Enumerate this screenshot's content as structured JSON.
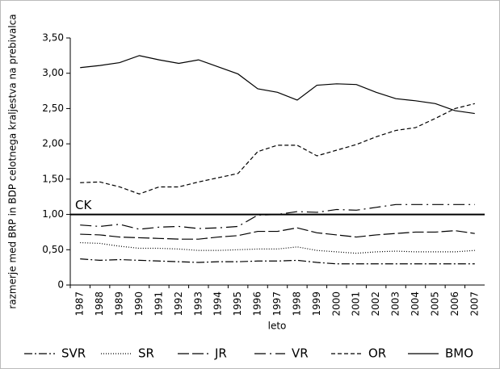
{
  "chart_data": {
    "type": "line",
    "y_label": "razmerje med BRP in BDP celotnega kraljestva na prebivalca",
    "x_label": "leto",
    "categories": [
      "1987",
      "1988",
      "1989",
      "1990",
      "1991",
      "1992",
      "1993",
      "1994",
      "1995",
      "1996",
      "1997",
      "1998",
      "1999",
      "2000",
      "2001",
      "2002",
      "2003",
      "2004",
      "2005",
      "2006",
      "2007"
    ],
    "ylim": [
      0,
      3.5
    ],
    "yticks": [
      0,
      {
        "value": 0.5,
        "label": "0,50"
      },
      {
        "value": 1,
        "label": "1,00"
      },
      {
        "value": 1.5,
        "label": "1,50"
      },
      {
        "value": 2,
        "label": "2,00"
      },
      {
        "value": 2.5,
        "label": "2,50"
      },
      {
        "value": 3,
        "label": "3,00"
      },
      {
        "value": 3.5,
        "label": "3,50"
      }
    ],
    "reference_line": {
      "label": "CK",
      "value": 1
    },
    "legend": "bottom",
    "series": [
      {
        "name": "SVR",
        "color": "#000000",
        "dash": "dashdot",
        "values": [
          0.37,
          0.35,
          0.36,
          0.35,
          0.34,
          0.33,
          0.32,
          0.33,
          0.33,
          0.34,
          0.34,
          0.35,
          0.32,
          0.3,
          0.3,
          0.3,
          0.3,
          0.3,
          0.3,
          0.3,
          0.3
        ]
      },
      {
        "name": "SR",
        "color": "#000000",
        "dash": "dotted",
        "values": [
          0.6,
          0.59,
          0.55,
          0.52,
          0.52,
          0.51,
          0.49,
          0.49,
          0.5,
          0.51,
          0.51,
          0.54,
          0.49,
          0.47,
          0.45,
          0.47,
          0.48,
          0.47,
          0.47,
          0.47,
          0.49
        ]
      },
      {
        "name": "JR",
        "color": "#000000",
        "dash": "longdash",
        "values": [
          0.72,
          0.71,
          0.68,
          0.67,
          0.66,
          0.65,
          0.65,
          0.68,
          0.7,
          0.76,
          0.76,
          0.81,
          0.74,
          0.71,
          0.68,
          0.71,
          0.73,
          0.75,
          0.75,
          0.77,
          0.73
        ]
      },
      {
        "name": "VR",
        "color": "#000000",
        "dash": "longdashdot",
        "values": [
          0.85,
          0.83,
          0.86,
          0.79,
          0.82,
          0.83,
          0.8,
          0.81,
          0.83,
          0.99,
          1.0,
          1.04,
          1.03,
          1.07,
          1.06,
          1.1,
          1.14,
          1.14,
          1.14,
          1.14,
          1.14
        ]
      },
      {
        "name": "OR",
        "color": "#000000",
        "dash": "dashed",
        "values": [
          1.45,
          1.46,
          1.39,
          1.29,
          1.39,
          1.39,
          1.46,
          1.52,
          1.58,
          1.89,
          1.98,
          1.98,
          1.83,
          1.91,
          1.99,
          2.1,
          2.19,
          2.23,
          2.36,
          2.5,
          2.57
        ]
      },
      {
        "name": "BMO",
        "color": "#000000",
        "dash": "solid",
        "values": [
          3.08,
          3.11,
          3.15,
          3.25,
          3.19,
          3.14,
          3.19,
          3.09,
          2.99,
          2.78,
          2.73,
          2.62,
          2.83,
          2.85,
          2.84,
          2.73,
          2.64,
          2.61,
          2.57,
          2.47,
          2.43
        ]
      }
    ]
  }
}
